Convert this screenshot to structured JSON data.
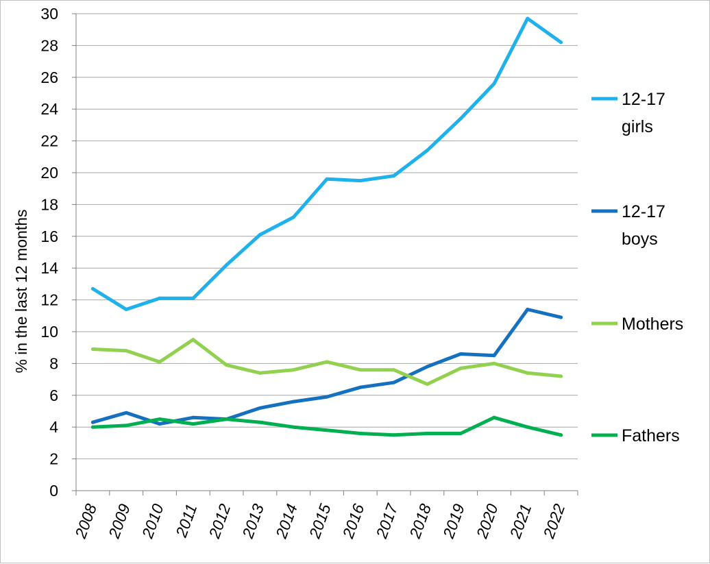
{
  "chart_data": {
    "type": "line",
    "title": "",
    "xlabel": "",
    "ylabel": "% in the last 12 months",
    "ylim": [
      0,
      30
    ],
    "y_ticks": [
      "0",
      "2",
      "4",
      "6",
      "8",
      "10",
      "12",
      "14",
      "16",
      "18",
      "20",
      "22",
      "24",
      "26",
      "28",
      "30"
    ],
    "grid": true,
    "legend_position": "right",
    "categories": [
      "2008",
      "2009",
      "2010",
      "2011",
      "2012",
      "2013",
      "2014",
      "2015",
      "2016",
      "2017",
      "2018",
      "2019",
      "2020",
      "2021",
      "2022"
    ],
    "series": [
      {
        "name": "12-17 girls",
        "legend_lines": [
          "12-17",
          "girls"
        ],
        "color": "#1fb1ec",
        "values": [
          12.7,
          11.4,
          12.1,
          12.1,
          14.2,
          16.1,
          17.2,
          19.6,
          19.5,
          19.8,
          21.4,
          23.4,
          25.6,
          29.7,
          28.2
        ]
      },
      {
        "name": "12-17 boys",
        "legend_lines": [
          "12-17",
          "boys"
        ],
        "color": "#1570c0",
        "values": [
          4.3,
          4.9,
          4.2,
          4.6,
          4.5,
          5.2,
          5.6,
          5.9,
          6.5,
          6.8,
          7.8,
          8.6,
          8.5,
          11.4,
          10.9
        ]
      },
      {
        "name": "Mothers",
        "legend_lines": [
          "Mothers"
        ],
        "color": "#92d050",
        "values": [
          8.9,
          8.8,
          8.1,
          9.5,
          7.9,
          7.4,
          7.6,
          8.1,
          7.6,
          7.6,
          6.7,
          7.7,
          8.0,
          7.4,
          7.2
        ]
      },
      {
        "name": "Fathers",
        "legend_lines": [
          "Fathers"
        ],
        "color": "#00b050",
        "values": [
          4.0,
          4.1,
          4.5,
          4.2,
          4.5,
          4.3,
          4.0,
          3.8,
          3.6,
          3.5,
          3.6,
          3.6,
          4.6,
          4.0,
          3.5
        ]
      }
    ]
  }
}
